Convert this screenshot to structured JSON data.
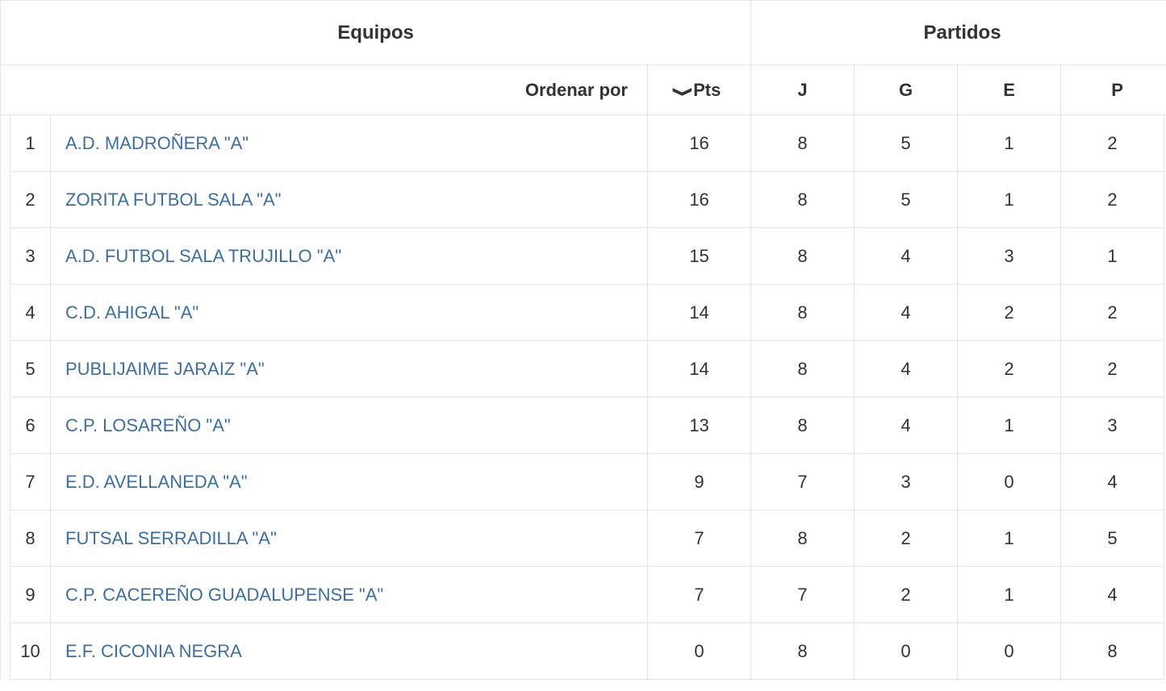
{
  "colors": {
    "border": "#e5e5e5",
    "text": "#333333",
    "link": "#3b6ea5",
    "background": "#ffffff"
  },
  "typography": {
    "header1_fontsize": 24,
    "header2_fontsize": 22,
    "cell_fontsize": 22,
    "font_family": "Arial"
  },
  "table": {
    "group_headers": {
      "equipos": "Equipos",
      "partidos": "Partidos"
    },
    "sub_headers": {
      "ordenar_por": "Ordenar por",
      "pts": "Pts",
      "j": "J",
      "g": "G",
      "e": "E",
      "p": "P"
    },
    "sort": {
      "column": "pts",
      "direction": "desc",
      "icon": "❯"
    },
    "columns": [
      "rank",
      "team",
      "pts",
      "j",
      "g",
      "e",
      "p"
    ],
    "rows": [
      {
        "rank": 1,
        "team": "A.D. MADROÑERA \"A\"",
        "pts": 16,
        "j": 8,
        "g": 5,
        "e": 1,
        "p": 2
      },
      {
        "rank": 2,
        "team": "ZORITA FUTBOL SALA \"A\"",
        "pts": 16,
        "j": 8,
        "g": 5,
        "e": 1,
        "p": 2
      },
      {
        "rank": 3,
        "team": "A.D. FUTBOL SALA TRUJILLO \"A\"",
        "pts": 15,
        "j": 8,
        "g": 4,
        "e": 3,
        "p": 1
      },
      {
        "rank": 4,
        "team": "C.D. AHIGAL \"A\"",
        "pts": 14,
        "j": 8,
        "g": 4,
        "e": 2,
        "p": 2
      },
      {
        "rank": 5,
        "team": "PUBLIJAIME JARAIZ \"A\"",
        "pts": 14,
        "j": 8,
        "g": 4,
        "e": 2,
        "p": 2
      },
      {
        "rank": 6,
        "team": "C.P. LOSAREÑO \"A\"",
        "pts": 13,
        "j": 8,
        "g": 4,
        "e": 1,
        "p": 3
      },
      {
        "rank": 7,
        "team": "E.D. AVELLANEDA \"A\"",
        "pts": 9,
        "j": 7,
        "g": 3,
        "e": 0,
        "p": 4
      },
      {
        "rank": 8,
        "team": "FUTSAL SERRADILLA \"A\"",
        "pts": 7,
        "j": 8,
        "g": 2,
        "e": 1,
        "p": 5
      },
      {
        "rank": 9,
        "team": "C.P. CACEREÑO GUADALUPENSE \"A\"",
        "pts": 7,
        "j": 7,
        "g": 2,
        "e": 1,
        "p": 4
      },
      {
        "rank": 10,
        "team": "E.F. CICONIA NEGRA",
        "pts": 0,
        "j": 8,
        "g": 0,
        "e": 0,
        "p": 8
      }
    ]
  }
}
